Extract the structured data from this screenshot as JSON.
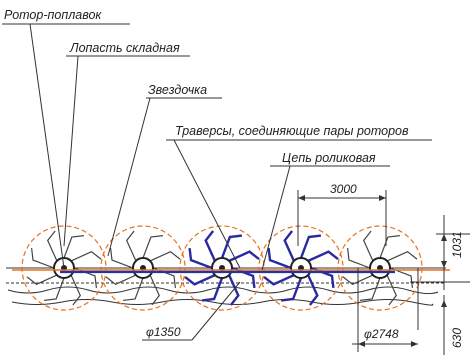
{
  "labels": {
    "rotor_float": "Ротор-поплавок",
    "folding_blade": "Лопасть складная",
    "sprocket": "Звездочка",
    "traverses": "Траверсы, соединяющие пары роторов",
    "roller_chain": "Цепь роликовая"
  },
  "dimensions": {
    "spacing": "3000",
    "height_top": "1031",
    "diameter_rotor": "φ1350",
    "diameter_outer": "φ2748",
    "depth": "630"
  },
  "colors": {
    "blade_orange": "#e8701f",
    "chain_blue": "#2233aa",
    "sprocket_blue": "#2a2aa0",
    "line": "#333333",
    "hub": "#222222"
  },
  "rotors": [
    {
      "id": 1,
      "sprocket": false
    },
    {
      "id": 2,
      "sprocket": false
    },
    {
      "id": 3,
      "sprocket": true
    },
    {
      "id": 4,
      "sprocket": true
    },
    {
      "id": 5,
      "sprocket": false
    }
  ]
}
